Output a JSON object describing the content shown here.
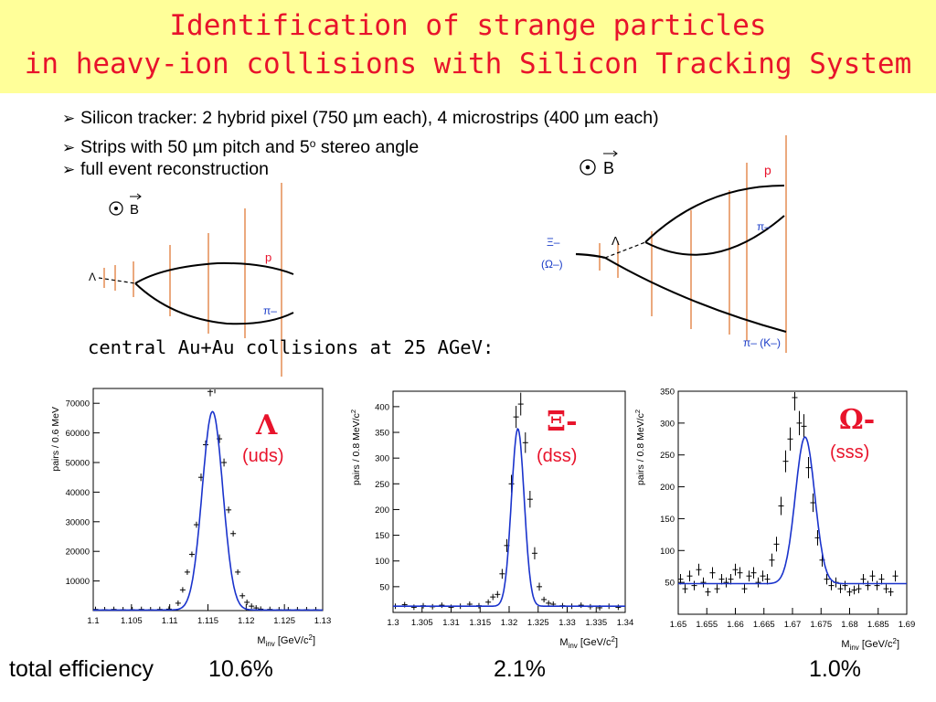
{
  "title": {
    "line1": "Identification of strange particles",
    "line2": "in heavy-ion collisions with Silicon Tracking System"
  },
  "bullets": [
    "Silicon tracker: 2 hybrid pixel (750 µm each), 4 microstrips (400 µm each)",
    "Strips with 50 µm pitch and 5",
    "full event reconstruction"
  ],
  "bullet_sup": "o",
  "bullet2_suffix": " stereo angle",
  "subtitle": "central Au+Au collisions at 25 AGeV:",
  "diagrams": {
    "left": {
      "field": "B",
      "labels": {
        "lambda": "Λ",
        "p": "p",
        "pi": "π–"
      }
    },
    "right": {
      "field": "B",
      "labels": {
        "xi": "Ξ–",
        "omega": "(Ω–)",
        "lambda": "Λ",
        "p": "p",
        "pi": "π–",
        "pik": "π– (K–)"
      }
    }
  },
  "efficiency": {
    "label": "total efficiency",
    "values": [
      "10.6%",
      "2.1%",
      "1.0%"
    ]
  },
  "chart_data": [
    {
      "type": "scatter",
      "particle": "Λ",
      "quarks": "(uds)",
      "xlabel": "M_inv [GeV/c^2]",
      "ylabel": "pairs / 0.6 MeV",
      "xlim": [
        1.1,
        1.13
      ],
      "ylim": [
        0,
        75000
      ],
      "xticks": [
        "1.1",
        "1.105",
        "1.11",
        "1.115",
        "1.12",
        "1.125",
        "1.13"
      ],
      "yticks": [
        "10000",
        "20000",
        "30000",
        "40000",
        "50000",
        "60000",
        "70000"
      ],
      "fit": {
        "mean": 1.1156,
        "sigma": 0.00135,
        "amplitude": 67000,
        "background": 200
      },
      "points": [
        [
          1.1003,
          400
        ],
        [
          1.1015,
          300
        ],
        [
          1.1027,
          400
        ],
        [
          1.1039,
          300
        ],
        [
          1.1051,
          300
        ],
        [
          1.1063,
          400
        ],
        [
          1.1075,
          300
        ],
        [
          1.1087,
          400
        ],
        [
          1.1099,
          500
        ],
        [
          1.1111,
          2500
        ],
        [
          1.1117,
          7000
        ],
        [
          1.1123,
          13000
        ],
        [
          1.1129,
          19000
        ],
        [
          1.1135,
          29000
        ],
        [
          1.1141,
          45000
        ],
        [
          1.1147,
          56000
        ],
        [
          1.1153,
          74000
        ],
        [
          1.1159,
          75000
        ],
        [
          1.1165,
          58000
        ],
        [
          1.1171,
          50000
        ],
        [
          1.1177,
          34000
        ],
        [
          1.1183,
          26000
        ],
        [
          1.1189,
          13000
        ],
        [
          1.1195,
          5000
        ],
        [
          1.1201,
          2800
        ],
        [
          1.1207,
          1500
        ],
        [
          1.1213,
          900
        ],
        [
          1.1219,
          500
        ],
        [
          1.1231,
          400
        ],
        [
          1.1243,
          300
        ],
        [
          1.1255,
          300
        ],
        [
          1.1267,
          300
        ],
        [
          1.1279,
          300
        ],
        [
          1.1291,
          300
        ]
      ]
    },
    {
      "type": "scatter",
      "particle": "Ξ-",
      "quarks": "(dss)",
      "xlabel": "M_inv [GeV/c^2]",
      "ylabel": "pairs / 0.8 MeV/c^2",
      "xlim": [
        1.3,
        1.34
      ],
      "ylim": [
        0,
        430
      ],
      "xticks": [
        "1.3",
        "1.305",
        "1.31",
        "1.315",
        "1.32",
        "1.325",
        "1.33",
        "1.335",
        "1.34"
      ],
      "yticks": [
        "50",
        "100",
        "150",
        "200",
        "250",
        "300",
        "350",
        "400"
      ],
      "fit": {
        "mean": 1.3215,
        "sigma": 0.0011,
        "amplitude": 345,
        "background": 12
      },
      "points": [
        [
          1.3004,
          12
        ],
        [
          1.302,
          15
        ],
        [
          1.3036,
          10
        ],
        [
          1.3052,
          13
        ],
        [
          1.3068,
          11
        ],
        [
          1.3084,
          14
        ],
        [
          1.31,
          10
        ],
        [
          1.3116,
          12
        ],
        [
          1.3132,
          16
        ],
        [
          1.3148,
          13
        ],
        [
          1.3164,
          20
        ],
        [
          1.3172,
          30
        ],
        [
          1.318,
          35
        ],
        [
          1.3188,
          75
        ],
        [
          1.3196,
          130
        ],
        [
          1.3204,
          250
        ],
        [
          1.3212,
          380
        ],
        [
          1.322,
          405
        ],
        [
          1.3228,
          330
        ],
        [
          1.3236,
          220
        ],
        [
          1.3244,
          115
        ],
        [
          1.3252,
          50
        ],
        [
          1.326,
          25
        ],
        [
          1.3268,
          18
        ],
        [
          1.3276,
          16
        ],
        [
          1.3292,
          13
        ],
        [
          1.3308,
          12
        ],
        [
          1.3324,
          14
        ],
        [
          1.334,
          11
        ],
        [
          1.3356,
          9
        ],
        [
          1.3372,
          12
        ],
        [
          1.3388,
          10
        ]
      ]
    },
    {
      "type": "scatter",
      "particle": "Ω-",
      "quarks": "(sss)",
      "xlabel": "M_inv [GeV/c^2]",
      "ylabel": "pairs / 0.8 MeV/c^2",
      "xlim": [
        1.65,
        1.69
      ],
      "ylim": [
        0,
        350
      ],
      "xticks": [
        "1.65",
        "1.655",
        "1.66",
        "1.665",
        "1.67",
        "1.675",
        "1.68",
        "1.685",
        "1.69"
      ],
      "yticks": [
        "50",
        "100",
        "150",
        "200",
        "250",
        "300",
        "350"
      ],
      "fit": {
        "mean": 1.6722,
        "sigma": 0.0017,
        "amplitude": 230,
        "background": 48
      },
      "points": [
        [
          1.6504,
          55
        ],
        [
          1.6512,
          40
        ],
        [
          1.652,
          60
        ],
        [
          1.6528,
          45
        ],
        [
          1.6536,
          70
        ],
        [
          1.6544,
          50
        ],
        [
          1.6552,
          35
        ],
        [
          1.656,
          65
        ],
        [
          1.6568,
          40
        ],
        [
          1.6576,
          55
        ],
        [
          1.6584,
          50
        ],
        [
          1.6592,
          55
        ],
        [
          1.66,
          70
        ],
        [
          1.6608,
          65
        ],
        [
          1.6616,
          40
        ],
        [
          1.6624,
          60
        ],
        [
          1.6632,
          65
        ],
        [
          1.664,
          50
        ],
        [
          1.6648,
          60
        ],
        [
          1.6656,
          55
        ],
        [
          1.6664,
          85
        ],
        [
          1.6672,
          110
        ],
        [
          1.668,
          170
        ],
        [
          1.6688,
          240
        ],
        [
          1.6696,
          275
        ],
        [
          1.6704,
          340
        ],
        [
          1.6712,
          300
        ],
        [
          1.672,
          295
        ],
        [
          1.6728,
          230
        ],
        [
          1.6736,
          175
        ],
        [
          1.6744,
          120
        ],
        [
          1.6752,
          85
        ],
        [
          1.676,
          55
        ],
        [
          1.6768,
          45
        ],
        [
          1.6776,
          50
        ],
        [
          1.6784,
          40
        ],
        [
          1.6792,
          45
        ],
        [
          1.68,
          35
        ],
        [
          1.6808,
          38
        ],
        [
          1.6816,
          40
        ],
        [
          1.6824,
          55
        ],
        [
          1.6832,
          45
        ],
        [
          1.684,
          60
        ],
        [
          1.6848,
          45
        ],
        [
          1.6856,
          55
        ],
        [
          1.6864,
          40
        ],
        [
          1.6872,
          35
        ],
        [
          1.688,
          60
        ]
      ]
    }
  ]
}
